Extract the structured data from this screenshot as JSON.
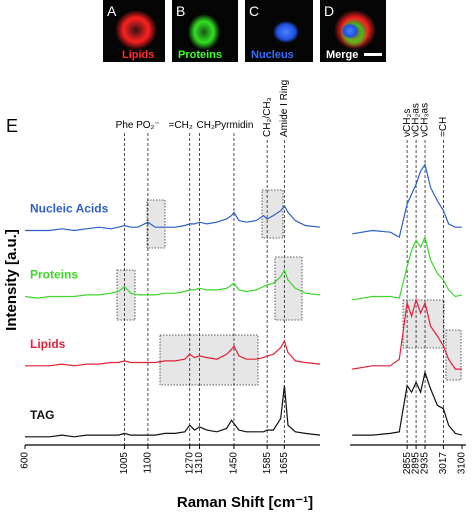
{
  "image_panels": [
    {
      "letter": "A",
      "label": "Lipids",
      "color": "#ff2a2a"
    },
    {
      "letter": "B",
      "label": "Proteins",
      "color": "#3cff2a"
    },
    {
      "letter": "C",
      "label": "Nucleus",
      "color": "#3a6cff"
    },
    {
      "letter": "D",
      "label": "Merge",
      "color": "#ffffff"
    }
  ],
  "panel_letter": "E",
  "chart_data": {
    "type": "line",
    "x_label": "Raman Shift [cm⁻¹]",
    "y_label": "Intensity [a.u.]",
    "xlim": [
      600,
      3100
    ],
    "xbreak": [
      1800,
      2600
    ],
    "ylim": [
      0,
      10
    ],
    "xticks": [
      600,
      1005,
      1100,
      1270,
      1310,
      1450,
      1585,
      1655,
      2855,
      2895,
      2935,
      3017,
      3100
    ],
    "annotations": [
      {
        "x": 1005,
        "text": "Phe",
        "vertical": false,
        "anchor": "middle"
      },
      {
        "x": 1100,
        "text": "PO₂⁻",
        "vertical": false,
        "anchor": "middle"
      },
      {
        "x": 1270,
        "text": "=CH₂",
        "vertical": false,
        "anchor": "end"
      },
      {
        "x": 1310,
        "text": "CH₂",
        "vertical": false,
        "anchor": "start"
      },
      {
        "x": 1450,
        "text": "Pyrmidin",
        "vertical": false,
        "anchor": "middle"
      },
      {
        "x": 1585,
        "text": "CH₂/CH₃",
        "vertical": true,
        "anchor": "start"
      },
      {
        "x": 1655,
        "text": "Amide I Ring",
        "vertical": true,
        "anchor": "start"
      },
      {
        "x": 2855,
        "text": "νCH₂s",
        "vertical": true,
        "anchor": "start"
      },
      {
        "x": 2895,
        "text": "νCH₂as",
        "vertical": true,
        "anchor": "start"
      },
      {
        "x": 2935,
        "text": "νCH₃as",
        "vertical": true,
        "anchor": "start"
      },
      {
        "x": 3017,
        "text": "=CH",
        "vertical": true,
        "anchor": "start"
      }
    ],
    "x": [
      600,
      650,
      700,
      750,
      800,
      850,
      900,
      950,
      980,
      1005,
      1030,
      1060,
      1100,
      1130,
      1170,
      1210,
      1250,
      1270,
      1290,
      1310,
      1340,
      1380,
      1420,
      1440,
      1450,
      1470,
      1500,
      1540,
      1570,
      1585,
      1610,
      1640,
      1655,
      1670,
      1700,
      1740,
      1800,
      2200,
      2610,
      2700,
      2780,
      2820,
      2855,
      2875,
      2895,
      2915,
      2935,
      2960,
      2990,
      3017,
      3040,
      3070,
      3100
    ],
    "series": [
      {
        "name": "Nucleic Acids",
        "color": "#2d5fc4",
        "values": [
          6.5,
          6.5,
          6.5,
          6.55,
          6.5,
          6.55,
          6.6,
          6.55,
          6.6,
          6.65,
          6.6,
          6.6,
          6.75,
          6.6,
          6.6,
          6.6,
          6.65,
          6.7,
          6.7,
          6.75,
          6.7,
          6.75,
          6.85,
          6.95,
          7.05,
          6.8,
          6.75,
          6.8,
          6.95,
          6.85,
          6.95,
          7.1,
          7.25,
          7.05,
          6.8,
          6.65,
          6.6,
          null,
          6.4,
          6.5,
          6.45,
          6.3,
          7.3,
          7.6,
          7.9,
          8.3,
          8.5,
          7.8,
          7.4,
          7.1,
          6.7,
          6.6,
          6.6
        ]
      },
      {
        "name": "Proteins",
        "color": "#3ed62c",
        "values": [
          4.5,
          4.45,
          4.5,
          4.5,
          4.5,
          4.55,
          4.55,
          4.6,
          4.65,
          4.8,
          4.6,
          4.55,
          4.55,
          4.55,
          4.6,
          4.6,
          4.65,
          4.7,
          4.7,
          4.75,
          4.7,
          4.7,
          4.75,
          4.85,
          4.9,
          4.7,
          4.65,
          4.7,
          4.8,
          4.85,
          4.9,
          5.1,
          5.3,
          5.0,
          4.75,
          4.6,
          4.55,
          null,
          4.4,
          4.5,
          4.5,
          4.45,
          5.4,
          5.9,
          6.2,
          6.0,
          6.3,
          5.6,
          5.2,
          5.0,
          4.7,
          4.5,
          4.55
        ]
      },
      {
        "name": "Lipids",
        "color": "#e3203c",
        "values": [
          2.4,
          2.4,
          2.4,
          2.45,
          2.4,
          2.45,
          2.45,
          2.5,
          2.5,
          2.55,
          2.5,
          2.5,
          2.5,
          2.5,
          2.55,
          2.55,
          2.6,
          2.75,
          2.65,
          2.7,
          2.65,
          2.6,
          2.75,
          2.9,
          3.0,
          2.7,
          2.6,
          2.6,
          2.65,
          2.7,
          2.75,
          2.95,
          3.15,
          2.8,
          2.55,
          2.5,
          2.45,
          null,
          2.3,
          2.4,
          2.4,
          2.6,
          4.3,
          3.9,
          4.4,
          4.0,
          4.3,
          3.6,
          3.3,
          3.0,
          2.6,
          2.3,
          2.3
        ]
      },
      {
        "name": "TAG",
        "color": "#111111",
        "values": [
          0.25,
          0.25,
          0.25,
          0.3,
          0.25,
          0.3,
          0.3,
          0.3,
          0.3,
          0.35,
          0.3,
          0.3,
          0.3,
          0.3,
          0.35,
          0.35,
          0.4,
          0.6,
          0.45,
          0.55,
          0.45,
          0.4,
          0.5,
          0.75,
          0.65,
          0.45,
          0.4,
          0.4,
          0.4,
          0.45,
          0.45,
          0.8,
          1.8,
          0.6,
          0.4,
          0.35,
          0.3,
          null,
          0.3,
          0.3,
          0.35,
          0.4,
          1.8,
          1.6,
          1.9,
          1.6,
          2.2,
          1.7,
          1.2,
          1.1,
          0.6,
          0.35,
          0.3
        ]
      }
    ]
  }
}
